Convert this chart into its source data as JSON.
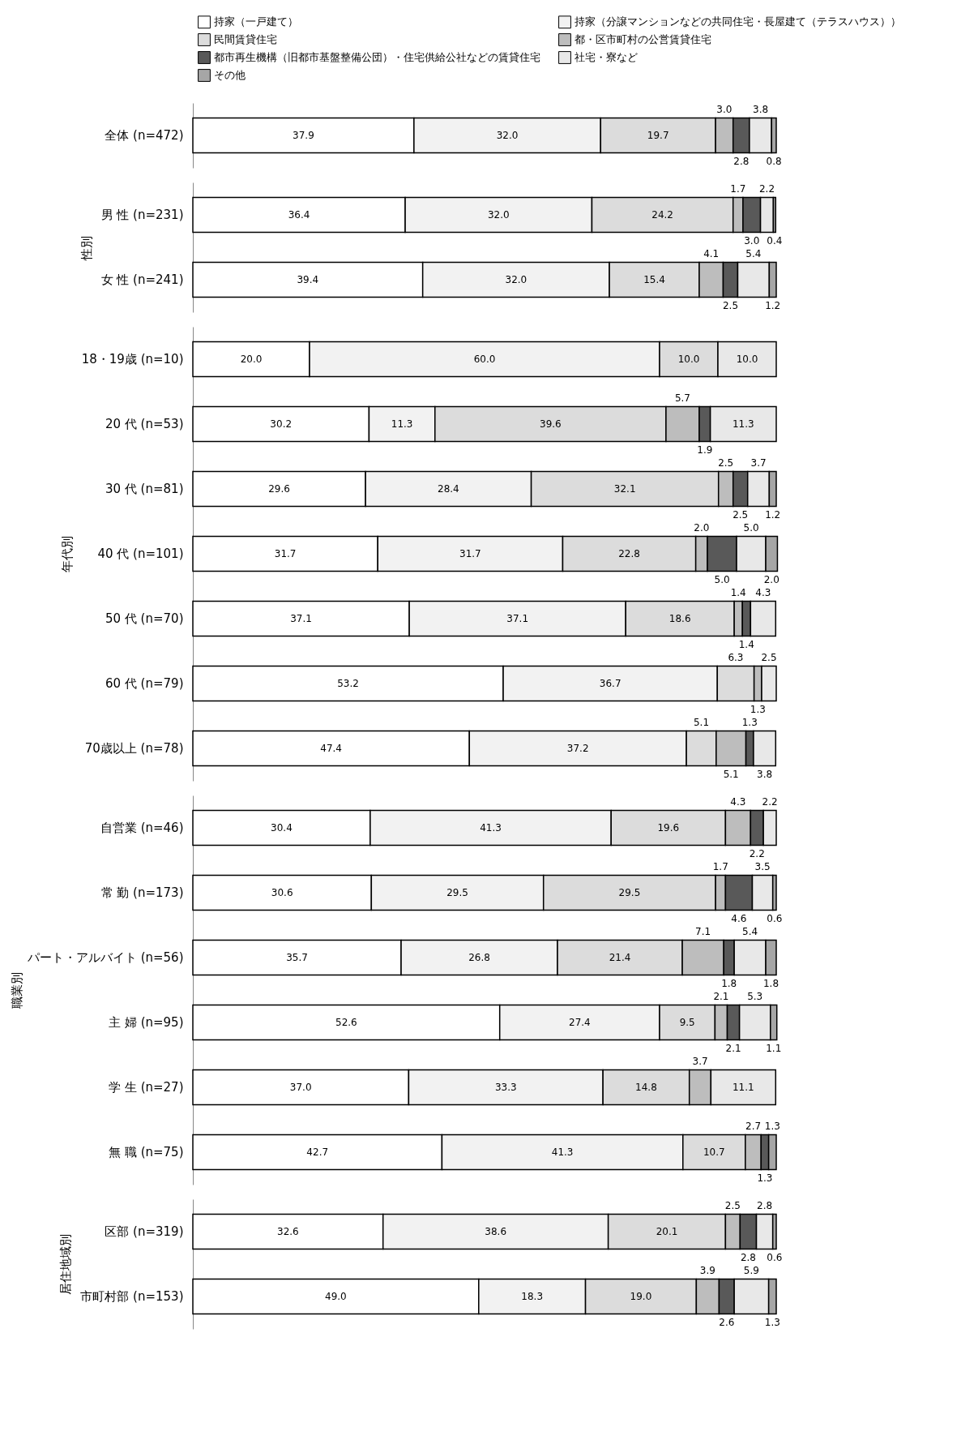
{
  "chart_data": [
    {
      "type": "bar",
      "orientation": "horizontal",
      "stacked": true,
      "legend": "top",
      "tick_labels": "y",
      "xlim": [
        0,
        100
      ],
      "categories": [
        "全体 (n=472)"
      ],
      "series": [
        {
          "name": "持家（一戸建て）",
          "color": "#ffffff",
          "values": [
            37.9
          ],
          "value_labels": [
            "37.9"
          ]
        },
        {
          "name": "持家（分譲マンションなどの共同住宅・長屋建て（テラスハウス））",
          "color": "#f2f2f2",
          "values": [
            32.0
          ],
          "value_labels": [
            "32.0"
          ]
        },
        {
          "name": "民間賃貸住宅",
          "color": "#dcdcdc",
          "values": [
            19.7
          ],
          "value_labels": [
            "19.7"
          ]
        },
        {
          "name": "都・区市町村の公営賃貸住宅",
          "color": "#bdbdbd",
          "values": [
            3.0
          ],
          "value_labels": [
            "3.0"
          ]
        },
        {
          "name": "都市再生機構（旧都市基盤整備公団）・住宅供給公社などの賃貸住宅",
          "color": "#595959",
          "values": [
            2.8
          ],
          "value_labels": [
            "2.8"
          ]
        },
        {
          "name": "社宅・寮など",
          "color": "#e8e8e8",
          "values": [
            3.8
          ],
          "value_labels": [
            "3.8"
          ]
        },
        {
          "name": "その他",
          "color": "#a6a6a6",
          "values": [
            0.8
          ],
          "value_labels": [
            "0.8"
          ]
        }
      ]
    },
    {
      "type": "bar",
      "orientation": "horizontal",
      "stacked": true,
      "tick_labels": "y",
      "xlim": [
        0,
        100
      ],
      "ylabel": "性別",
      "categories": [
        "男 性 (n=231)",
        "女 性 (n=241)"
      ],
      "series": [
        {
          "color": "#ffffff",
          "values": [
            36.4,
            39.4
          ],
          "value_labels": [
            "36.4",
            "39.4"
          ]
        },
        {
          "color": "#f2f2f2",
          "values": [
            32.0,
            32.0
          ],
          "value_labels": [
            "32.0",
            "32.0"
          ]
        },
        {
          "color": "#dcdcdc",
          "values": [
            24.2,
            15.4
          ],
          "value_labels": [
            "24.2",
            "15.4"
          ]
        },
        {
          "color": "#bdbdbd",
          "values": [
            1.7,
            4.1
          ],
          "value_labels": [
            "1.7",
            "4.1"
          ]
        },
        {
          "color": "#595959",
          "values": [
            3.0,
            2.5
          ],
          "value_labels": [
            "3.0",
            "2.5"
          ]
        },
        {
          "color": "#e8e8e8",
          "values": [
            2.2,
            5.4
          ],
          "value_labels": [
            "2.2",
            "5.4"
          ]
        },
        {
          "color": "#a6a6a6",
          "values": [
            0.4,
            1.2
          ],
          "value_labels": [
            "0.4",
            "1.2"
          ]
        }
      ]
    },
    {
      "type": "bar",
      "orientation": "horizontal",
      "stacked": true,
      "tick_labels": "y",
      "xlim": [
        0,
        100
      ],
      "ylabel": "年代別",
      "categories": [
        "18・19歳 (n=10)",
        "20 代 (n=53)",
        "30 代 (n=81)",
        "40 代 (n=101)",
        "50 代 (n=70)",
        "60 代 (n=79)",
        "70歳以上 (n=78)"
      ],
      "series": [
        {
          "color": "#ffffff",
          "values": [
            20.0,
            30.2,
            29.6,
            31.7,
            37.1,
            53.2,
            47.4
          ],
          "value_labels": [
            "20.0",
            "30.2",
            "29.6",
            "31.7",
            "37.1",
            "53.2",
            "47.4"
          ]
        },
        {
          "color": "#f2f2f2",
          "values": [
            60.0,
            11.3,
            28.4,
            31.7,
            37.1,
            36.7,
            37.2
          ],
          "value_labels": [
            "60.0",
            "11.3",
            "28.4",
            "31.7",
            "37.1",
            "36.7",
            "37.2"
          ]
        },
        {
          "color": "#dcdcdc",
          "values": [
            10.0,
            39.6,
            32.1,
            22.8,
            18.6,
            6.3,
            5.1
          ],
          "value_labels": [
            "10.0",
            "39.6",
            "32.1",
            "22.8",
            "18.6",
            "6.3",
            "5.1"
          ]
        },
        {
          "color": "#bdbdbd",
          "values": [
            null,
            5.7,
            2.5,
            2.0,
            1.4,
            1.3,
            5.1
          ],
          "value_labels": [
            null,
            "5.7",
            "2.5",
            "2.0",
            "1.4",
            "1.3",
            "5.1"
          ]
        },
        {
          "color": "#595959",
          "values": [
            null,
            1.9,
            2.5,
            5.0,
            1.4,
            null,
            1.3
          ],
          "value_labels": [
            null,
            "1.9",
            "2.5",
            "5.0",
            "1.4",
            null,
            "1.3"
          ]
        },
        {
          "color": "#e8e8e8",
          "values": [
            10.0,
            11.3,
            3.7,
            5.0,
            4.3,
            2.5,
            3.8
          ],
          "value_labels": [
            "10.0",
            "11.3",
            "3.7",
            "5.0",
            "4.3",
            "2.5",
            "3.8"
          ]
        },
        {
          "color": "#a6a6a6",
          "values": [
            null,
            null,
            1.2,
            2.0,
            null,
            null,
            null
          ],
          "value_labels": [
            null,
            null,
            "1.2",
            "2.0",
            null,
            null,
            null
          ]
        }
      ]
    },
    {
      "type": "bar",
      "orientation": "horizontal",
      "stacked": true,
      "tick_labels": "y",
      "xlim": [
        0,
        100
      ],
      "ylabel": "職業別",
      "categories": [
        "自営業 (n=46)",
        "常 勤 (n=173)",
        "パート・アルバイト (n=56)",
        "主 婦 (n=95)",
        "学 生 (n=27)",
        "無 職 (n=75)"
      ],
      "series": [
        {
          "color": "#ffffff",
          "values": [
            30.4,
            30.6,
            35.7,
            52.6,
            37.0,
            42.7
          ],
          "value_labels": [
            "30.4",
            "30.6",
            "35.7",
            "52.6",
            "37.0",
            "42.7"
          ]
        },
        {
          "color": "#f2f2f2",
          "values": [
            41.3,
            29.5,
            26.8,
            27.4,
            33.3,
            41.3
          ],
          "value_labels": [
            "41.3",
            "29.5",
            "26.8",
            "27.4",
            "33.3",
            "41.3"
          ]
        },
        {
          "color": "#dcdcdc",
          "values": [
            19.6,
            29.5,
            21.4,
            9.5,
            14.8,
            10.7
          ],
          "value_labels": [
            "19.6",
            "29.5",
            "21.4",
            "9.5",
            "14.8",
            "10.7"
          ]
        },
        {
          "color": "#bdbdbd",
          "values": [
            4.3,
            1.7,
            7.1,
            2.1,
            3.7,
            2.7
          ],
          "value_labels": [
            "4.3",
            "1.7",
            "7.1",
            "2.1",
            "3.7",
            "2.7"
          ]
        },
        {
          "color": "#595959",
          "values": [
            2.2,
            4.6,
            1.8,
            2.1,
            null,
            1.3
          ],
          "value_labels": [
            "2.2",
            "4.6",
            "1.8",
            "2.1",
            null,
            "1.3"
          ]
        },
        {
          "color": "#e8e8e8",
          "values": [
            2.2,
            3.5,
            5.4,
            5.3,
            11.1,
            null
          ],
          "value_labels": [
            "2.2",
            "3.5",
            "5.4",
            "5.3",
            "11.1",
            null
          ]
        },
        {
          "color": "#a6a6a6",
          "values": [
            null,
            0.6,
            1.8,
            1.1,
            null,
            1.3
          ],
          "value_labels": [
            null,
            "0.6",
            "1.8",
            "1.1",
            null,
            "1.3"
          ]
        }
      ]
    },
    {
      "type": "bar",
      "orientation": "horizontal",
      "stacked": true,
      "tick_labels": "y",
      "xlim": [
        0,
        100
      ],
      "ylabel": "居住地域別",
      "categories": [
        "区部 (n=319)",
        "市町村部 (n=153)"
      ],
      "series": [
        {
          "color": "#ffffff",
          "values": [
            32.6,
            49.0
          ],
          "value_labels": [
            "32.6",
            "49.0"
          ]
        },
        {
          "color": "#f2f2f2",
          "values": [
            38.6,
            18.3
          ],
          "value_labels": [
            "38.6",
            "18.3"
          ]
        },
        {
          "color": "#dcdcdc",
          "values": [
            20.1,
            19.0
          ],
          "value_labels": [
            "20.1",
            "19.0"
          ]
        },
        {
          "color": "#bdbdbd",
          "values": [
            2.5,
            3.9
          ],
          "value_labels": [
            "2.5",
            "3.9"
          ]
        },
        {
          "color": "#595959",
          "values": [
            2.8,
            2.6
          ],
          "value_labels": [
            "2.8",
            "2.6"
          ]
        },
        {
          "color": "#e8e8e8",
          "values": [
            2.8,
            5.9
          ],
          "value_labels": [
            "2.8",
            "5.9"
          ]
        },
        {
          "color": "#a6a6a6",
          "values": [
            0.6,
            1.3
          ],
          "value_labels": [
            "0.6",
            "1.3"
          ]
        }
      ]
    }
  ]
}
